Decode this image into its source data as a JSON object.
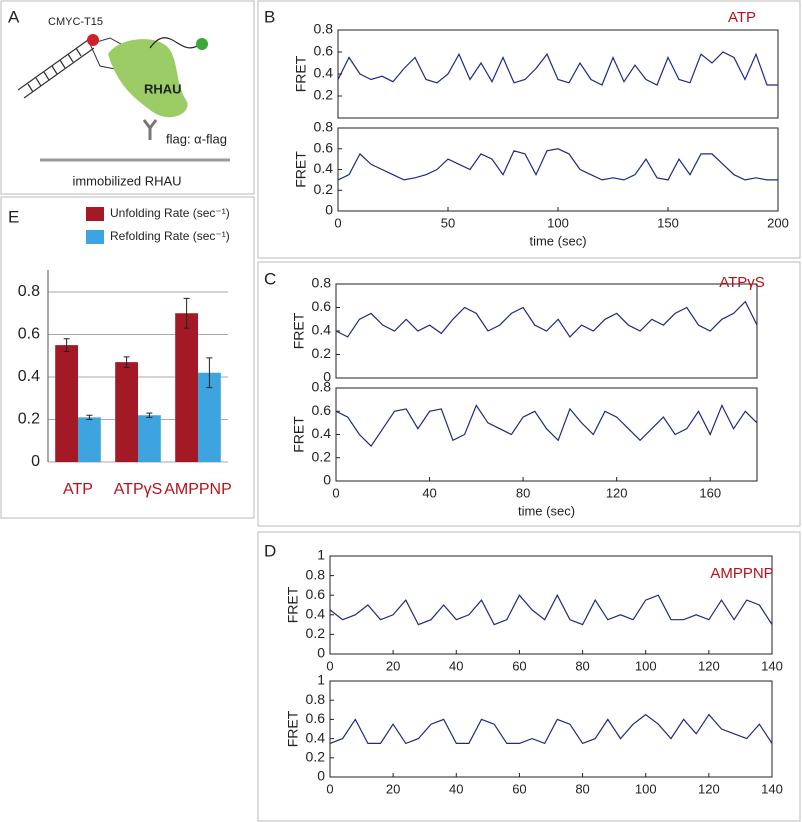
{
  "diagram": {
    "label": "A",
    "dna_label": "CMYC-T15",
    "protein_label": "RHAU",
    "antibody_label": "flag: α-flag",
    "surface_label": "immobilized RHAU"
  },
  "chart_data": [
    {
      "type": "bar",
      "panel_label": "E",
      "categories": [
        "ATP",
        "ATPγS",
        "AMPPNP"
      ],
      "category_color": "#b5121b",
      "series": [
        {
          "name": "Unfolding Rate (sec⁻¹)",
          "color": "#a31a26",
          "values": [
            0.55,
            0.47,
            0.7
          ],
          "errors": [
            0.03,
            0.025,
            0.07
          ]
        },
        {
          "name": "Refolding Rate (sec⁻¹)",
          "color": "#3ea4e0",
          "values": [
            0.21,
            0.22,
            0.42
          ],
          "errors": [
            0.01,
            0.01,
            0.07
          ]
        }
      ],
      "ylim": [
        0,
        0.8
      ],
      "yticks": [
        0,
        0.2,
        0.4,
        0.6,
        0.8
      ],
      "grid": true
    },
    {
      "type": "line",
      "panel_label": "B",
      "annotation": "ATP",
      "annotation_color": "#b5121b",
      "ylabel": "FRET",
      "color": "#1f2a80",
      "x": [
        0,
        5,
        10,
        15,
        20,
        25,
        30,
        35,
        40,
        45,
        50,
        55,
        60,
        65,
        70,
        75,
        80,
        85,
        90,
        95,
        100,
        105,
        110,
        115,
        120,
        125,
        130,
        135,
        140,
        145,
        150,
        155,
        160,
        165,
        170,
        175,
        180,
        185,
        190,
        195,
        200
      ],
      "values": [
        0.35,
        0.55,
        0.4,
        0.35,
        0.38,
        0.33,
        0.45,
        0.55,
        0.35,
        0.32,
        0.4,
        0.58,
        0.35,
        0.5,
        0.33,
        0.55,
        0.32,
        0.35,
        0.45,
        0.58,
        0.35,
        0.32,
        0.5,
        0.35,
        0.3,
        0.55,
        0.33,
        0.48,
        0.35,
        0.3,
        0.55,
        0.35,
        0.32,
        0.58,
        0.5,
        0.6,
        0.55,
        0.35,
        0.58,
        0.3,
        0.3
      ],
      "xlim": [
        0,
        200
      ],
      "ylim": [
        0,
        0.8
      ],
      "yticks": [
        0.2,
        0.4,
        0.6,
        0.8
      ]
    },
    {
      "type": "line",
      "ylabel": "FRET",
      "xlabel": "time (sec)",
      "color": "#1f2a80",
      "x": [
        0,
        5,
        10,
        15,
        20,
        25,
        30,
        35,
        40,
        45,
        50,
        55,
        60,
        65,
        70,
        75,
        80,
        85,
        90,
        95,
        100,
        105,
        110,
        115,
        120,
        125,
        130,
        135,
        140,
        145,
        150,
        155,
        160,
        165,
        170,
        175,
        180,
        185,
        190,
        195,
        200
      ],
      "values": [
        0.3,
        0.35,
        0.55,
        0.45,
        0.4,
        0.35,
        0.3,
        0.32,
        0.35,
        0.4,
        0.5,
        0.45,
        0.4,
        0.55,
        0.5,
        0.35,
        0.58,
        0.55,
        0.35,
        0.58,
        0.6,
        0.55,
        0.4,
        0.35,
        0.3,
        0.32,
        0.3,
        0.35,
        0.5,
        0.32,
        0.3,
        0.5,
        0.35,
        0.55,
        0.55,
        0.45,
        0.35,
        0.3,
        0.32,
        0.3,
        0.3
      ],
      "xlim": [
        0,
        200
      ],
      "xticks": [
        0,
        50,
        100,
        150,
        200
      ],
      "ylim": [
        0,
        0.8
      ],
      "yticks": [
        0,
        0.2,
        0.4,
        0.6,
        0.8
      ]
    },
    {
      "type": "line",
      "panel_label": "C",
      "annotation": "ATPγS",
      "annotation_color": "#b5121b",
      "ylabel": "FRET",
      "color": "#1f2a80",
      "x": [
        0,
        5,
        10,
        15,
        20,
        25,
        30,
        35,
        40,
        45,
        50,
        55,
        60,
        65,
        70,
        75,
        80,
        85,
        90,
        95,
        100,
        105,
        110,
        115,
        120,
        125,
        130,
        135,
        140,
        145,
        150,
        155,
        160,
        165,
        170,
        175,
        180
      ],
      "values": [
        0.4,
        0.35,
        0.5,
        0.55,
        0.45,
        0.4,
        0.5,
        0.4,
        0.45,
        0.38,
        0.5,
        0.6,
        0.55,
        0.4,
        0.45,
        0.55,
        0.6,
        0.45,
        0.4,
        0.5,
        0.35,
        0.45,
        0.4,
        0.5,
        0.55,
        0.45,
        0.4,
        0.5,
        0.45,
        0.55,
        0.6,
        0.45,
        0.4,
        0.5,
        0.55,
        0.65,
        0.45
      ],
      "xlim": [
        0,
        180
      ],
      "ylim": [
        0,
        0.8
      ],
      "yticks": [
        0,
        0.2,
        0.4,
        0.6,
        0.8
      ]
    },
    {
      "type": "line",
      "ylabel": "FRET",
      "xlabel": "time (sec)",
      "color": "#1f2a80",
      "x": [
        0,
        5,
        10,
        15,
        20,
        25,
        30,
        35,
        40,
        45,
        50,
        55,
        60,
        65,
        70,
        75,
        80,
        85,
        90,
        95,
        100,
        105,
        110,
        115,
        120,
        125,
        130,
        135,
        140,
        145,
        150,
        155,
        160,
        165,
        170,
        175,
        180
      ],
      "values": [
        0.6,
        0.55,
        0.4,
        0.3,
        0.45,
        0.6,
        0.62,
        0.45,
        0.6,
        0.62,
        0.35,
        0.4,
        0.65,
        0.5,
        0.45,
        0.4,
        0.55,
        0.6,
        0.45,
        0.35,
        0.62,
        0.5,
        0.4,
        0.6,
        0.55,
        0.45,
        0.35,
        0.45,
        0.55,
        0.4,
        0.45,
        0.6,
        0.4,
        0.65,
        0.45,
        0.6,
        0.5
      ],
      "xlim": [
        0,
        180
      ],
      "xticks": [
        0,
        40,
        80,
        120,
        160
      ],
      "ylim": [
        0,
        0.8
      ],
      "yticks": [
        0,
        0.2,
        0.4,
        0.6,
        0.8
      ]
    },
    {
      "type": "line",
      "panel_label": "D",
      "annotation": "AMPPNP",
      "annotation_color": "#b5121b",
      "ylabel": "FRET",
      "color": "#1f2a80",
      "x": [
        0,
        4,
        8,
        12,
        16,
        20,
        24,
        28,
        32,
        36,
        40,
        44,
        48,
        52,
        56,
        60,
        64,
        68,
        72,
        76,
        80,
        84,
        88,
        92,
        96,
        100,
        104,
        108,
        112,
        116,
        120,
        124,
        128,
        132,
        136,
        140
      ],
      "values": [
        0.45,
        0.35,
        0.4,
        0.5,
        0.35,
        0.4,
        0.55,
        0.3,
        0.35,
        0.5,
        0.35,
        0.4,
        0.55,
        0.3,
        0.35,
        0.6,
        0.45,
        0.35,
        0.6,
        0.35,
        0.3,
        0.55,
        0.35,
        0.4,
        0.35,
        0.55,
        0.6,
        0.35,
        0.35,
        0.4,
        0.35,
        0.55,
        0.35,
        0.55,
        0.5,
        0.3
      ],
      "xlim": [
        0,
        140
      ],
      "xticks": [
        0,
        20,
        40,
        60,
        80,
        100,
        120,
        140
      ],
      "ylim": [
        0,
        1
      ],
      "yticks": [
        0,
        0.2,
        0.4,
        0.6,
        0.8,
        1
      ]
    },
    {
      "type": "line",
      "ylabel": "FRET",
      "color": "#1f2a80",
      "x": [
        0,
        4,
        8,
        12,
        16,
        20,
        24,
        28,
        32,
        36,
        40,
        44,
        48,
        52,
        56,
        60,
        64,
        68,
        72,
        76,
        80,
        84,
        88,
        92,
        96,
        100,
        104,
        108,
        112,
        116,
        120,
        124,
        128,
        132,
        136,
        140
      ],
      "values": [
        0.35,
        0.4,
        0.6,
        0.35,
        0.35,
        0.55,
        0.35,
        0.4,
        0.55,
        0.6,
        0.35,
        0.35,
        0.6,
        0.55,
        0.35,
        0.35,
        0.4,
        0.35,
        0.6,
        0.55,
        0.35,
        0.4,
        0.6,
        0.4,
        0.55,
        0.65,
        0.55,
        0.4,
        0.6,
        0.45,
        0.65,
        0.5,
        0.45,
        0.4,
        0.55,
        0.35
      ],
      "xlim": [
        0,
        140
      ],
      "xticks": [
        0,
        20,
        40,
        60,
        80,
        100,
        120,
        140
      ],
      "ylim": [
        0,
        1
      ],
      "yticks": [
        0,
        0.2,
        0.4,
        0.6,
        0.8,
        1
      ]
    }
  ]
}
